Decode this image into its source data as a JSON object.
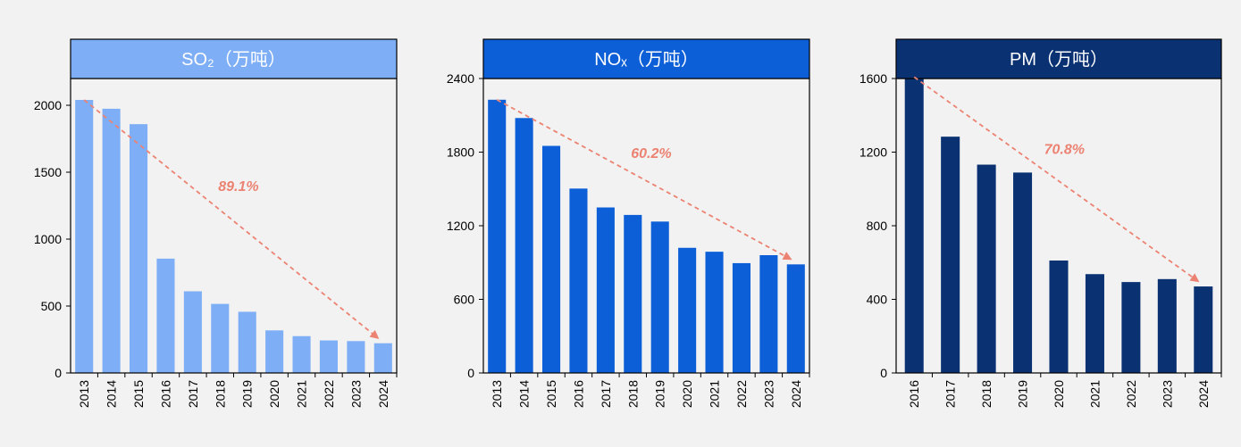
{
  "chart_data": [
    {
      "type": "bar",
      "title": "SO₂（万吨）",
      "color": "#7eaef5",
      "header_color": "#7eaef5",
      "categories": [
        "2013",
        "2014",
        "2015",
        "2016",
        "2017",
        "2018",
        "2019",
        "2020",
        "2021",
        "2022",
        "2023",
        "2024"
      ],
      "values": [
        2040,
        1974,
        1859,
        854,
        610,
        516,
        457,
        318,
        275,
        243,
        238,
        222
      ],
      "ylim": [
        0,
        2200
      ],
      "yticks": [
        0,
        500,
        1000,
        1500,
        2000
      ],
      "annotation": {
        "label": "89.1%",
        "from": "2013",
        "to": "2024",
        "color": "#ec8272"
      }
    },
    {
      "type": "bar",
      "title": "NOₓ（万吨）",
      "color": "#0d5fd8",
      "header_color": "#0d5fd8",
      "categories": [
        "2013",
        "2014",
        "2015",
        "2016",
        "2017",
        "2018",
        "2019",
        "2020",
        "2021",
        "2022",
        "2023",
        "2024"
      ],
      "values": [
        2227,
        2078,
        1851,
        1503,
        1349,
        1288,
        1234,
        1020,
        988,
        895,
        960,
        885
      ],
      "ylim": [
        0,
        2400
      ],
      "yticks": [
        0,
        600,
        1200,
        1800,
        2400
      ],
      "annotation": {
        "label": "60.2%",
        "from": "2013",
        "to": "2024",
        "color": "#ec8272"
      }
    },
    {
      "type": "bar",
      "title": "PM（万吨）",
      "color": "#0a3273",
      "header_color": "#0a3273",
      "categories": [
        "2016",
        "2017",
        "2018",
        "2019",
        "2020",
        "2021",
        "2022",
        "2023",
        "2024"
      ],
      "values": [
        1608,
        1284,
        1132,
        1089,
        611,
        537,
        494,
        510,
        470
      ],
      "ylim": [
        0,
        1600
      ],
      "yticks": [
        0,
        400,
        800,
        1200,
        1600
      ],
      "annotation": {
        "label": "70.8%",
        "from": "2016",
        "to": "2024",
        "color": "#ec8272"
      }
    }
  ]
}
